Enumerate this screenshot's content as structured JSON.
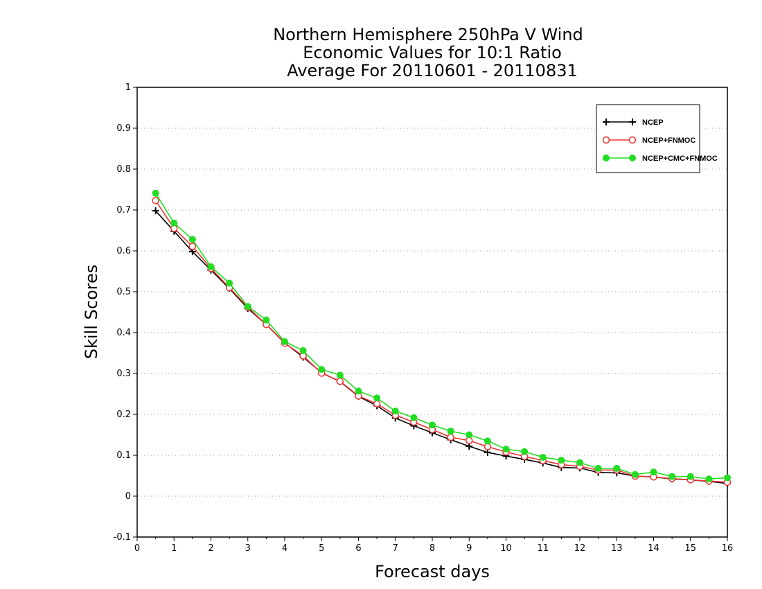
{
  "chart_data": {
    "type": "line",
    "title_lines": [
      "Northern Hemisphere 250hPa V Wind",
      "Economic Values for 10:1 Ratio",
      "Average For 20110601 - 20110831"
    ],
    "xlabel": "Forecast days",
    "ylabel": "Skill Scores",
    "xlim": [
      0,
      16
    ],
    "ylim": [
      -0.1,
      1
    ],
    "xticks": [
      0,
      1,
      2,
      3,
      4,
      5,
      6,
      7,
      8,
      9,
      10,
      11,
      12,
      13,
      14,
      15,
      16
    ],
    "xtick_labels": [
      "0",
      "1",
      "2",
      "3",
      "4",
      "5",
      "6",
      "7",
      "8",
      "9",
      "10",
      "11",
      "12",
      "13",
      "14",
      "15",
      "16"
    ],
    "yticks": [
      -0.1,
      0,
      0.1,
      0.2,
      0.3,
      0.4,
      0.5,
      0.6,
      0.7,
      0.8,
      0.9,
      1
    ],
    "ytick_labels": [
      "-0.1",
      "0",
      "0.1",
      "0.2",
      "0.3",
      "0.4",
      "0.5",
      "0.6",
      "0.7",
      "0.8",
      "0.9",
      "1"
    ],
    "grid": "horizontal-dotted",
    "legend_position": "top-right",
    "x": [
      0.5,
      1,
      1.5,
      2,
      2.5,
      3,
      3.5,
      4,
      4.5,
      5,
      5.5,
      6,
      6.5,
      7,
      7.5,
      8,
      8.5,
      9,
      9.5,
      10,
      10.5,
      11,
      11.5,
      12,
      12.5,
      13,
      13.5,
      14,
      14.5,
      15,
      15.5,
      16
    ],
    "series": [
      {
        "name": "NCEP",
        "color": "#000000",
        "marker": "plus",
        "values": [
          0.698,
          0.648,
          0.598,
          0.553,
          0.508,
          0.459,
          0.42,
          0.375,
          0.34,
          0.302,
          0.28,
          0.244,
          0.221,
          0.191,
          0.172,
          0.155,
          0.138,
          0.122,
          0.107,
          0.098,
          0.09,
          0.081,
          0.07,
          0.069,
          0.058,
          0.057,
          0.049,
          0.047,
          0.042,
          0.04,
          0.036,
          0.031
        ]
      },
      {
        "name": "NCEP+FNMOC",
        "color": "#ee3333",
        "marker": "open-circle",
        "values": [
          0.723,
          0.655,
          0.611,
          0.557,
          0.51,
          0.462,
          0.42,
          0.374,
          0.343,
          0.301,
          0.281,
          0.245,
          0.226,
          0.198,
          0.181,
          0.163,
          0.144,
          0.136,
          0.121,
          0.108,
          0.097,
          0.087,
          0.077,
          0.073,
          0.064,
          0.064,
          0.049,
          0.047,
          0.043,
          0.04,
          0.037,
          0.034
        ]
      },
      {
        "name": "NCEP+CMC+FNMOC",
        "color": "#22dd22",
        "marker": "filled-circle",
        "values": [
          0.741,
          0.668,
          0.628,
          0.561,
          0.521,
          0.464,
          0.431,
          0.378,
          0.356,
          0.31,
          0.296,
          0.257,
          0.24,
          0.208,
          0.192,
          0.174,
          0.159,
          0.15,
          0.135,
          0.115,
          0.109,
          0.095,
          0.088,
          0.082,
          0.068,
          0.068,
          0.053,
          0.059,
          0.048,
          0.048,
          0.042,
          0.045
        ]
      }
    ]
  }
}
